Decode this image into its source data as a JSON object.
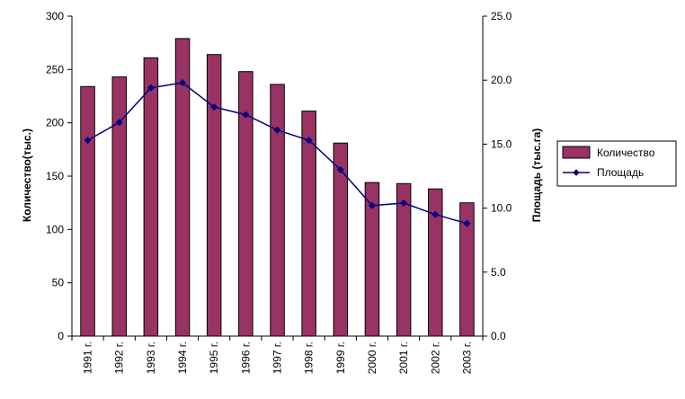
{
  "chart_data": {
    "type": "bar",
    "categories": [
      "1991 г.",
      "1992 г.",
      "1993 г.",
      "1994 г.",
      "1995 г.",
      "1996 г.",
      "1997 г.",
      "1998 г.",
      "1999 г.",
      "2000 г.",
      "2001 г.",
      "2002 г.",
      "2003 г."
    ],
    "series": [
      {
        "name": "Количество",
        "type": "bar",
        "axis": "left",
        "color": "#993366",
        "values": [
          234,
          243,
          261,
          279,
          264,
          248,
          236,
          211,
          181,
          144,
          143,
          138,
          125
        ]
      },
      {
        "name": "Площадь",
        "type": "line",
        "axis": "right",
        "color": "#000080",
        "values": [
          15.3,
          16.7,
          19.4,
          19.8,
          17.9,
          17.3,
          16.1,
          15.3,
          13.0,
          10.2,
          10.4,
          9.5,
          8.8
        ]
      }
    ],
    "ylabel": "Количество(тыс.)",
    "y2label": "Площадь (тыс.га)",
    "ylim": [
      0,
      300
    ],
    "y2lim": [
      0,
      25
    ],
    "yticks": [
      "0",
      "50",
      "100",
      "150",
      "200",
      "250",
      "300"
    ],
    "y2ticks": [
      "0.0",
      "5.0",
      "10.0",
      "15.0",
      "20.0",
      "25.0"
    ],
    "grid": false,
    "legend": "right"
  }
}
